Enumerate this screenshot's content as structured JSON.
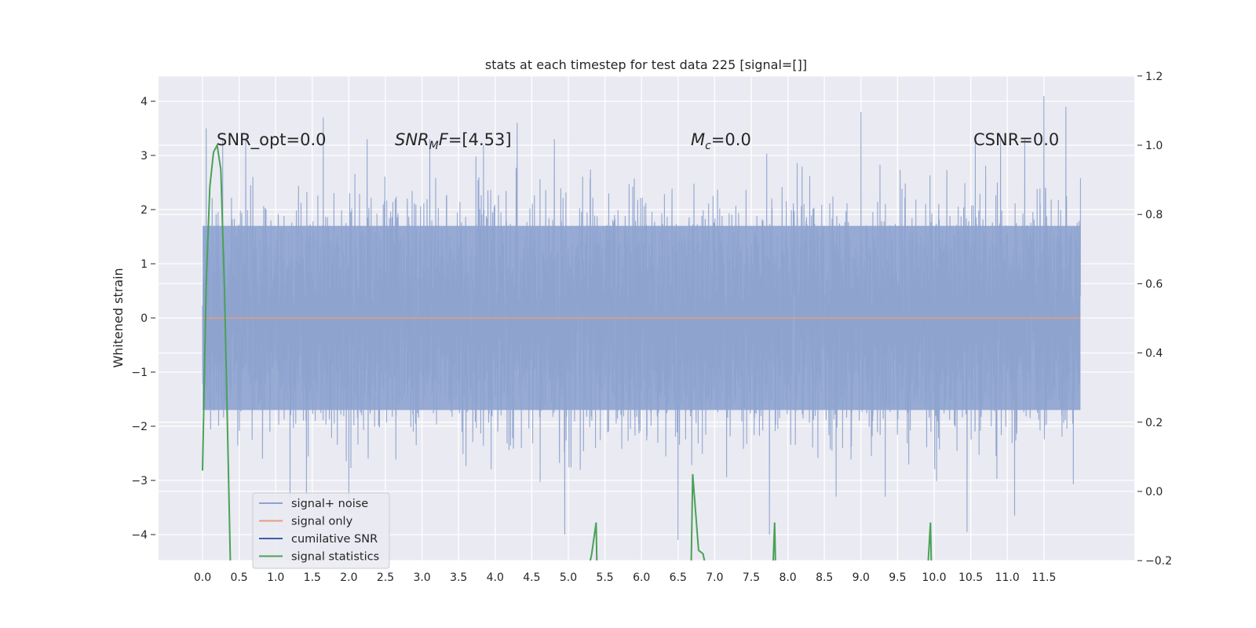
{
  "chart_data": {
    "type": "line",
    "title": "stats at each timestep for test data 225 [signal=[]]",
    "ylabel": "Whitened strain",
    "xlabel": "",
    "xlim": [
      -0.5,
      12.4
    ],
    "ylim": [
      -4.5,
      4.5
    ],
    "y2lim": [
      -0.2,
      1.2
    ],
    "grid": true,
    "legend_position": "lower-left",
    "x_ticks": [
      "0.0",
      "0.5",
      "1.0",
      "1.5",
      "2.0",
      "2.5",
      "3.0",
      "3.5",
      "4.0",
      "4.5",
      "5.0",
      "5.5",
      "6.0",
      "6.5",
      "7.0",
      "7.5",
      "8.0",
      "8.5",
      "9.0",
      "9.5",
      "10.0",
      "10.5",
      "11.0",
      "11.5"
    ],
    "x_tick_values": [
      0,
      0.5,
      1,
      1.5,
      2,
      2.5,
      3,
      3.5,
      4,
      4.5,
      5,
      5.5,
      6,
      6.5,
      7,
      7.5,
      8,
      8.5,
      9,
      9.5,
      10,
      10.5,
      11,
      11.5
    ],
    "y_ticks": [
      "−4",
      "−3",
      "−2",
      "−1",
      "0",
      "1",
      "2",
      "3",
      "4"
    ],
    "y_tick_values": [
      -4,
      -3,
      -2,
      -1,
      0,
      1,
      2,
      3,
      4
    ],
    "y2_ticks": [
      "−0.2",
      "0.0",
      "0.2",
      "0.4",
      "0.6",
      "0.8",
      "1.0",
      "1.2"
    ],
    "y2_tick_values": [
      -0.2,
      0,
      0.2,
      0.4,
      0.6,
      0.8,
      1.0,
      1.2
    ],
    "annotations": [
      {
        "text": "SNR_opt=0.0",
        "x": 0.2,
        "y": 3.2
      },
      {
        "text": "SNR_MF=[4.53]",
        "x": 2.6,
        "y": 3.2
      },
      {
        "text": "M_c=0.0",
        "x": 6.6,
        "y": 3.2
      },
      {
        "text": "CSNR=0.0",
        "x": 10.4,
        "y": 3.2
      }
    ],
    "series": [
      {
        "name": "signal+ noise",
        "color": "#8da3cf",
        "x_range": [
          0,
          12.0
        ],
        "typical_envelope": [
          -2.0,
          2.0
        ],
        "extremes": [
          {
            "x": 0.05,
            "y": 3.5
          },
          {
            "x": 1.65,
            "y": 3.7
          },
          {
            "x": 4.3,
            "y": 3.6
          },
          {
            "x": 9.0,
            "y": 3.8
          },
          {
            "x": 11.5,
            "y": 4.1
          },
          {
            "x": 11.8,
            "y": 3.9
          },
          {
            "x": 2.0,
            "y": -3.6
          },
          {
            "x": 4.95,
            "y": -4.0
          },
          {
            "x": 6.5,
            "y": -4.1
          },
          {
            "x": 7.75,
            "y": -4.0
          },
          {
            "x": 10.45,
            "y": -3.95
          },
          {
            "x": 11.1,
            "y": -3.65
          }
        ]
      },
      {
        "name": "signal only",
        "color": "#e19d82",
        "x": [
          0,
          12.0
        ],
        "y": [
          0,
          0
        ]
      },
      {
        "name": "cumilative SNR",
        "color": "#3d5ea6",
        "x": [],
        "y": []
      },
      {
        "name": "signal statistics",
        "color": "#4aa156",
        "axis": "right",
        "segments": [
          {
            "x": [
              0.0,
              0.05,
              0.1,
              0.15,
              0.2,
              0.25,
              0.3,
              0.35,
              0.38
            ],
            "y": [
              0.06,
              0.6,
              0.88,
              0.98,
              1.0,
              0.93,
              0.58,
              0.1,
              -0.2
            ]
          },
          {
            "x": [
              5.3,
              5.32,
              5.38,
              5.39
            ],
            "y": [
              -0.2,
              -0.18,
              -0.09,
              -0.2
            ]
          },
          {
            "x": [
              6.68,
              6.7,
              6.78,
              6.84,
              6.86
            ],
            "y": [
              -0.2,
              0.05,
              -0.17,
              -0.18,
              -0.2
            ]
          },
          {
            "x": [
              7.8,
              7.82,
              7.83
            ],
            "y": [
              -0.2,
              -0.09,
              -0.2
            ]
          },
          {
            "x": [
              9.92,
              9.95,
              9.96
            ],
            "y": [
              -0.2,
              -0.09,
              -0.2
            ]
          }
        ]
      }
    ]
  }
}
